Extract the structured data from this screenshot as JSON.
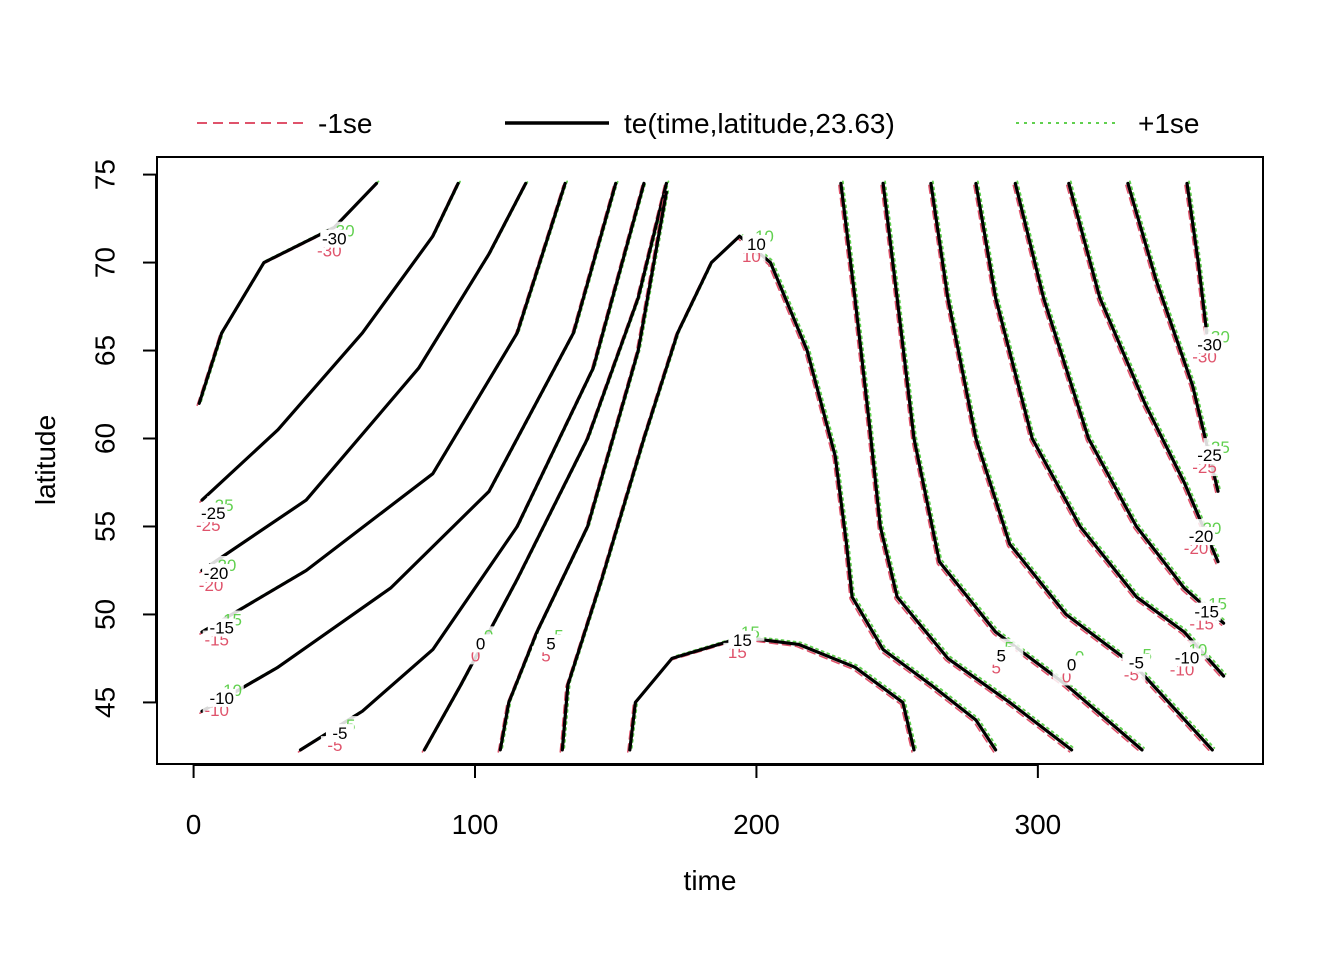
{
  "chart_data": {
    "type": "contour",
    "xlabel": "time",
    "ylabel": "latitude",
    "xlim": [
      -13,
      380
    ],
    "ylim": [
      41.5,
      76
    ],
    "x_ticks": [
      0,
      100,
      200,
      300
    ],
    "y_ticks": [
      45,
      50,
      55,
      60,
      65,
      70,
      75
    ],
    "legend": {
      "placement": "top",
      "entries": [
        {
          "label": "-1se",
          "color": "#DF536B",
          "dash": "dashed"
        },
        {
          "label": "te(time,latitude,23.63)",
          "color": "#000000",
          "dash": "solid"
        },
        {
          "label": "+1se",
          "color": "#61D04F",
          "dash": "dotted"
        }
      ]
    },
    "series": [
      {
        "level": "-30",
        "points": [
          [
            2,
            62
          ],
          [
            10,
            66
          ],
          [
            25,
            70
          ],
          [
            50,
            72
          ],
          [
            65,
            74.5
          ]
        ],
        "label_at": [
          50,
          71.3
        ]
      },
      {
        "level": "-25",
        "points": [
          [
            3,
            56.5
          ],
          [
            30,
            60.5
          ],
          [
            60,
            66
          ],
          [
            85,
            71.5
          ],
          [
            94,
            74.5
          ]
        ],
        "label_at": [
          7,
          55.7
        ]
      },
      {
        "level": "-20",
        "points": [
          [
            3,
            52.5
          ],
          [
            40,
            56.5
          ],
          [
            80,
            64
          ],
          [
            105,
            70.5
          ],
          [
            118,
            74.5
          ]
        ],
        "label_at": [
          8,
          52.3
        ]
      },
      {
        "level": "-15",
        "points": [
          [
            3,
            49
          ],
          [
            40,
            52.5
          ],
          [
            85,
            58
          ],
          [
            115,
            66
          ],
          [
            132,
            74.5
          ]
        ],
        "label_at": [
          10,
          49.2
        ]
      },
      {
        "level": "-10",
        "points": [
          [
            3,
            44.5
          ],
          [
            30,
            47
          ],
          [
            70,
            51.5
          ],
          [
            105,
            57
          ],
          [
            135,
            66
          ],
          [
            150,
            74.5
          ]
        ],
        "label_at": [
          10,
          45.2
        ]
      },
      {
        "level": "-5",
        "points": [
          [
            38,
            42.3
          ],
          [
            60,
            44.5
          ],
          [
            85,
            48
          ],
          [
            115,
            55
          ],
          [
            142,
            64
          ],
          [
            160,
            74.5
          ]
        ],
        "label_at": [
          52,
          43.2
        ]
      },
      {
        "level": "0",
        "points": [
          [
            82,
            42.3
          ],
          [
            95,
            46
          ],
          [
            115,
            52
          ],
          [
            140,
            60
          ],
          [
            158,
            68
          ],
          [
            168,
            74.5
          ]
        ],
        "label_at": [
          102,
          48.3
        ]
      },
      {
        "level": "5",
        "points": [
          [
            109,
            42.3
          ],
          [
            112,
            45
          ],
          [
            122,
            49
          ],
          [
            140,
            55
          ],
          [
            158,
            65
          ],
          [
            168,
            74
          ]
        ],
        "label_at": [
          127,
          48.3
        ]
      },
      {
        "level": "10",
        "points": [
          [
            131,
            42.3
          ],
          [
            133,
            46
          ],
          [
            145,
            52
          ],
          [
            160,
            60
          ],
          [
            172,
            66
          ],
          [
            184,
            70
          ],
          [
            194,
            71.5
          ],
          [
            205,
            70
          ],
          [
            218,
            65
          ],
          [
            228,
            59
          ],
          [
            232,
            54
          ],
          [
            234,
            51
          ],
          [
            245,
            48
          ],
          [
            262,
            46
          ],
          [
            278,
            44
          ],
          [
            285,
            42.3
          ]
        ],
        "label_at": [
          200,
          71
        ]
      },
      {
        "level": "15",
        "points": [
          [
            155,
            42.3
          ],
          [
            157,
            45
          ],
          [
            170,
            47.5
          ],
          [
            195,
            48.7
          ],
          [
            215,
            48.3
          ],
          [
            235,
            47
          ],
          [
            252,
            45
          ],
          [
            256,
            42.3
          ]
        ],
        "label_at": [
          195,
          48.5
        ]
      },
      {
        "level": "5",
        "points": [
          [
            230,
            74.5
          ],
          [
            235,
            68
          ],
          [
            240,
            61
          ],
          [
            244,
            55
          ],
          [
            250,
            51
          ],
          [
            268,
            47.5
          ],
          [
            290,
            45
          ],
          [
            312,
            42.3
          ]
        ],
        "label_at": [
          287,
          47.6
        ]
      },
      {
        "level": "0",
        "points": [
          [
            245,
            74.5
          ],
          [
            250,
            68
          ],
          [
            256,
            60
          ],
          [
            265,
            53
          ],
          [
            285,
            49
          ],
          [
            310,
            46
          ],
          [
            337,
            42.3
          ]
        ],
        "label_at": [
          312,
          47.1
        ]
      },
      {
        "level": "-5",
        "points": [
          [
            262,
            74.5
          ],
          [
            268,
            68
          ],
          [
            278,
            60
          ],
          [
            290,
            54
          ],
          [
            310,
            50
          ],
          [
            335,
            47
          ],
          [
            362,
            42.3
          ]
        ],
        "label_at": [
          335,
          47.2
        ]
      },
      {
        "level": "-10",
        "points": [
          [
            278,
            74.5
          ],
          [
            285,
            68
          ],
          [
            298,
            60
          ],
          [
            315,
            55
          ],
          [
            335,
            51
          ],
          [
            352,
            49
          ],
          [
            366,
            46.5
          ]
        ],
        "label_at": [
          353,
          47.5
        ]
      },
      {
        "level": "-15",
        "points": [
          [
            292,
            74.5
          ],
          [
            302,
            68
          ],
          [
            318,
            60
          ],
          [
            335,
            55
          ],
          [
            352,
            51.5
          ],
          [
            366,
            49.5
          ]
        ],
        "label_at": [
          360,
          50.1
        ]
      },
      {
        "level": "-20",
        "points": [
          [
            311,
            74.5
          ],
          [
            322,
            68
          ],
          [
            338,
            62
          ],
          [
            352,
            57.5
          ],
          [
            364,
            53
          ]
        ],
        "label_at": [
          358,
          54.4
        ]
      },
      {
        "level": "-25",
        "points": [
          [
            332,
            74.5
          ],
          [
            342,
            69
          ],
          [
            355,
            63
          ],
          [
            364,
            57
          ]
        ],
        "label_at": [
          361,
          59
        ]
      },
      {
        "level": "-30",
        "points": [
          [
            353,
            74.5
          ],
          [
            357,
            70
          ],
          [
            360,
            66
          ]
        ],
        "label_at": [
          361,
          65.3
        ]
      }
    ]
  }
}
